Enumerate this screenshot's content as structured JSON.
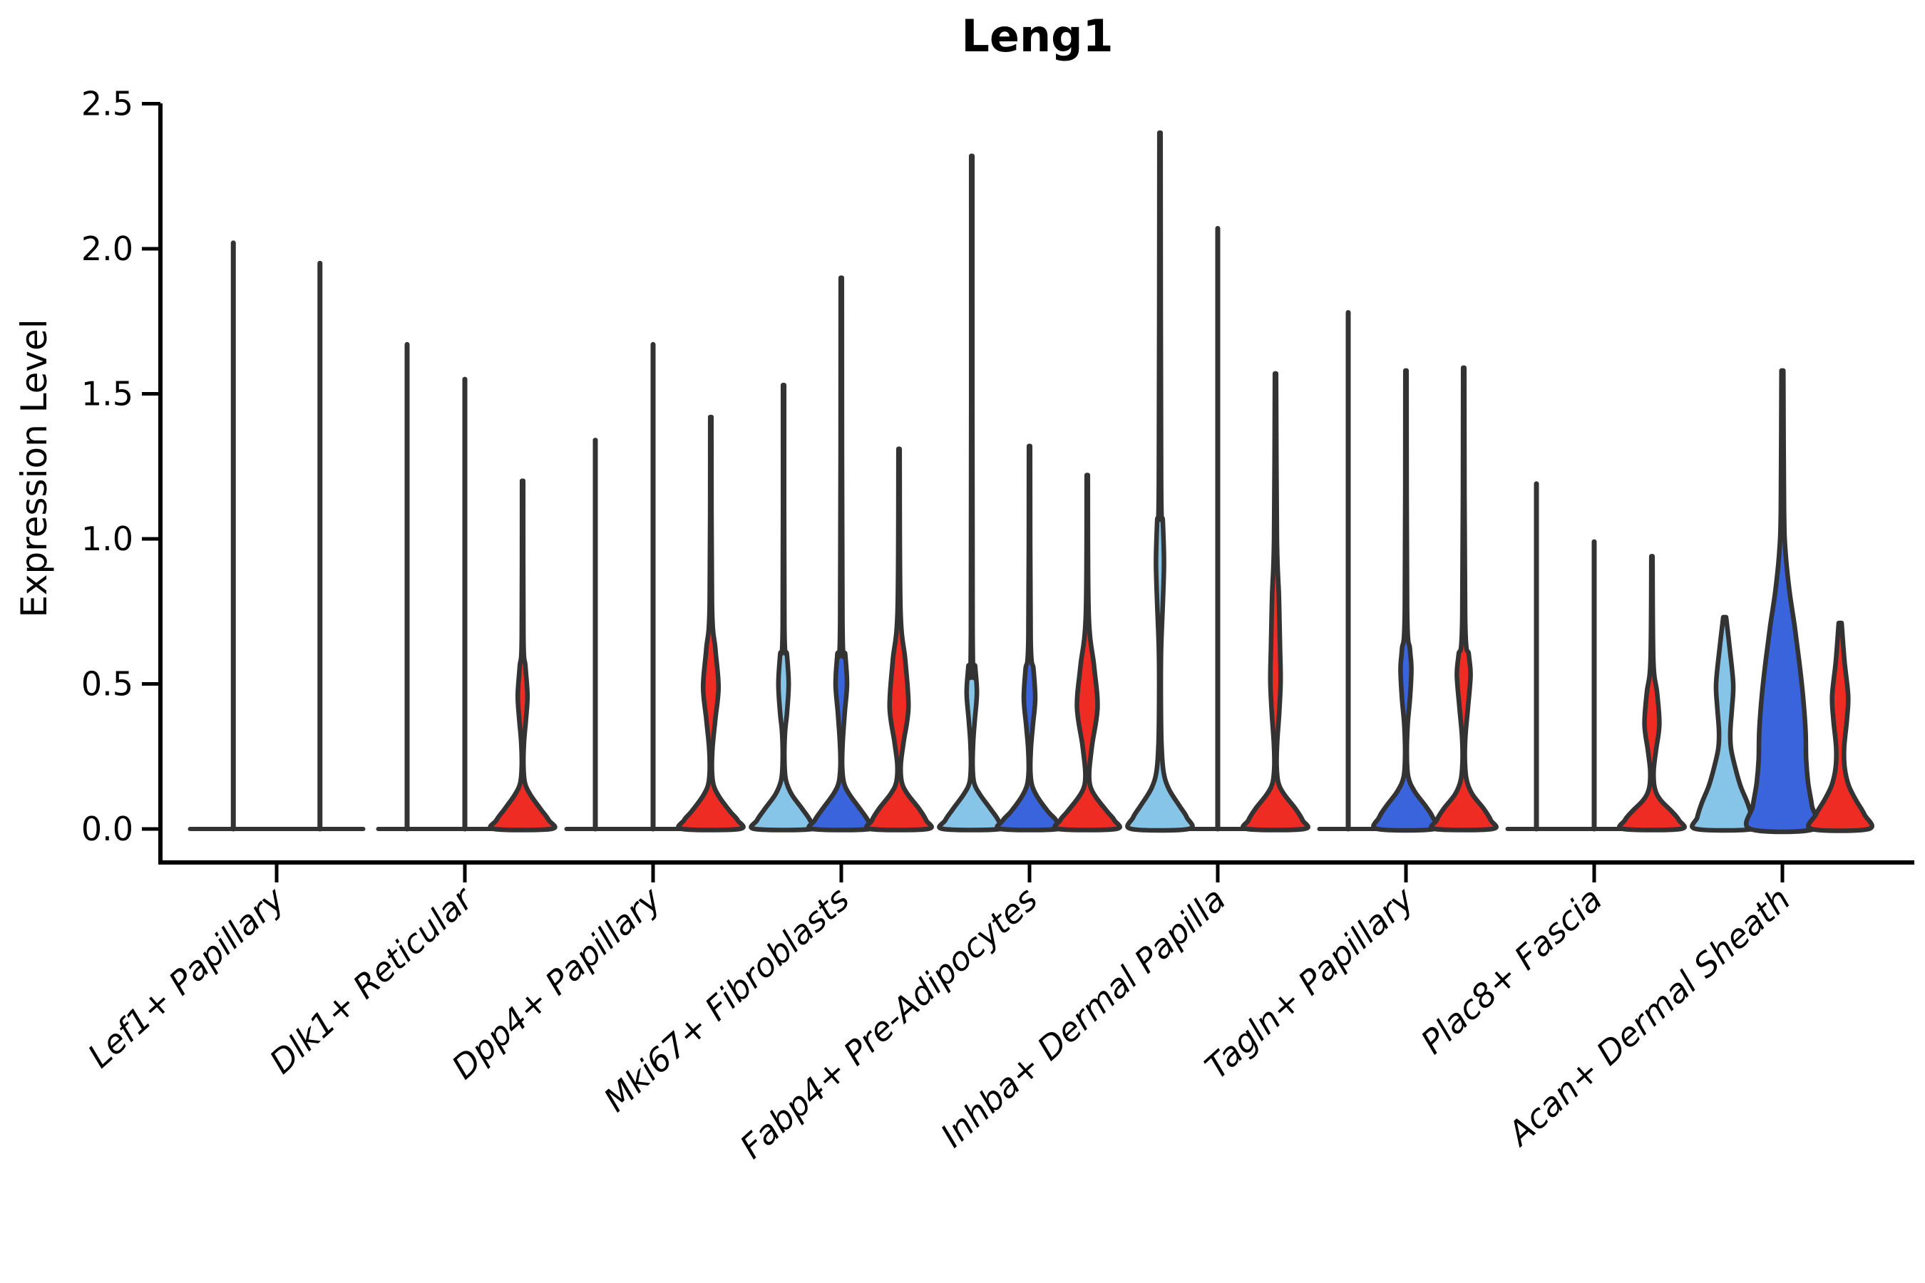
{
  "title": "Leng1",
  "chart_data": {
    "type": "violin",
    "title": "Leng1",
    "xlabel": "",
    "ylabel": "Expression Level",
    "ylim": [
      0.0,
      2.5
    ],
    "y_ticks": [
      0.0,
      0.5,
      1.0,
      1.5,
      2.0,
      2.5
    ],
    "grid": false,
    "legend_position": "none",
    "colors": {
      "lightblue": "#86C5E8",
      "darkblue": "#3A64DB",
      "red": "#EE2C24",
      "outline": "#333333",
      "axis": "#000000"
    },
    "categories": [
      "Lef1+ Papillary",
      "Dlk1+ Reticular",
      "Dpp4+ Papillary",
      "Mki67+ Fibroblasts",
      "Fabp4+ Pre-Adipocytes",
      "Inhba+ Dermal Papilla",
      "Tagln+ Papillary",
      "Plac8+ Fascia",
      "Acan+ Dermal Sheath"
    ],
    "groups": [
      {
        "category": "Lef1+ Papillary",
        "violins": [
          {
            "color": "lightblue",
            "flat": true,
            "max": 2.02
          },
          {
            "color": "darkblue",
            "flat": true,
            "max": 1.95
          }
        ]
      },
      {
        "category": "Dlk1+ Reticular",
        "violins": [
          {
            "color": "lightblue",
            "flat": true,
            "max": 1.67
          },
          {
            "color": "darkblue",
            "flat": true,
            "max": 1.55
          },
          {
            "color": "red",
            "flat": false,
            "max": 1.2,
            "profile": [
              [
                1.2,
                0.02
              ],
              [
                0.66,
                0.03
              ],
              [
                0.56,
                0.1
              ],
              [
                0.46,
                0.17
              ],
              [
                0.38,
                0.12
              ],
              [
                0.3,
                0.05
              ],
              [
                0.22,
                0.03
              ],
              [
                0.16,
                0.08
              ],
              [
                0.12,
                0.26
              ],
              [
                0.07,
                0.62
              ],
              [
                0.03,
                0.92
              ],
              [
                0,
                1
              ]
            ]
          }
        ]
      },
      {
        "category": "Dpp4+ Papillary",
        "violins": [
          {
            "color": "lightblue",
            "flat": true,
            "max": 1.34
          },
          {
            "color": "darkblue",
            "flat": true,
            "max": 1.67
          },
          {
            "color": "red",
            "flat": false,
            "max": 1.42,
            "profile": [
              [
                1.42,
                0.02
              ],
              [
                0.78,
                0.04
              ],
              [
                0.62,
                0.16
              ],
              [
                0.49,
                0.27
              ],
              [
                0.38,
                0.16
              ],
              [
                0.28,
                0.06
              ],
              [
                0.2,
                0.04
              ],
              [
                0.15,
                0.1
              ],
              [
                0.11,
                0.3
              ],
              [
                0.06,
                0.68
              ],
              [
                0.03,
                0.94
              ],
              [
                0,
                1
              ]
            ]
          }
        ]
      },
      {
        "category": "Mki67+ Fibroblasts",
        "violins": [
          {
            "color": "lightblue",
            "flat": false,
            "max": 1.53,
            "profile": [
              [
                1.53,
                0.02
              ],
              [
                0.7,
                0.03
              ],
              [
                0.6,
                0.12
              ],
              [
                0.5,
                0.18
              ],
              [
                0.4,
                0.12
              ],
              [
                0.33,
                0.05
              ],
              [
                0.24,
                0.03
              ],
              [
                0.17,
                0.08
              ],
              [
                0.12,
                0.28
              ],
              [
                0.07,
                0.65
              ],
              [
                0.03,
                0.93
              ],
              [
                0,
                1
              ]
            ]
          },
          {
            "color": "darkblue",
            "flat": false,
            "max": 1.9,
            "profile": [
              [
                1.9,
                0.02
              ],
              [
                0.72,
                0.04
              ],
              [
                0.6,
                0.14
              ],
              [
                0.5,
                0.2
              ],
              [
                0.4,
                0.12
              ],
              [
                0.3,
                0.05
              ],
              [
                0.22,
                0.03
              ],
              [
                0.16,
                0.09
              ],
              [
                0.12,
                0.28
              ],
              [
                0.07,
                0.65
              ],
              [
                0.03,
                0.93
              ],
              [
                0,
                1
              ]
            ]
          },
          {
            "color": "red",
            "flat": false,
            "max": 1.31,
            "profile": [
              [
                1.31,
                0.02
              ],
              [
                0.76,
                0.05
              ],
              [
                0.58,
                0.22
              ],
              [
                0.42,
                0.33
              ],
              [
                0.3,
                0.16
              ],
              [
                0.22,
                0.06
              ],
              [
                0.16,
                0.1
              ],
              [
                0.12,
                0.3
              ],
              [
                0.07,
                0.7
              ],
              [
                0.03,
                0.95
              ],
              [
                0,
                1
              ]
            ]
          }
        ]
      },
      {
        "category": "Fabp4+ Pre-Adipocytes",
        "violins": [
          {
            "color": "lightblue",
            "flat": false,
            "max": 2.32,
            "profile": [
              [
                2.32,
                0.02
              ],
              [
                0.68,
                0.03
              ],
              [
                0.56,
                0.12
              ],
              [
                0.47,
                0.18
              ],
              [
                0.38,
                0.11
              ],
              [
                0.3,
                0.05
              ],
              [
                0.22,
                0.03
              ],
              [
                0.16,
                0.08
              ],
              [
                0.12,
                0.28
              ],
              [
                0.07,
                0.65
              ],
              [
                0.03,
                0.93
              ],
              [
                0,
                1
              ]
            ]
          },
          {
            "color": "darkblue",
            "flat": false,
            "max": 1.32,
            "profile": [
              [
                1.32,
                0.02
              ],
              [
                0.66,
                0.04
              ],
              [
                0.55,
                0.14
              ],
              [
                0.45,
                0.2
              ],
              [
                0.36,
                0.12
              ],
              [
                0.28,
                0.05
              ],
              [
                0.2,
                0.03
              ],
              [
                0.15,
                0.09
              ],
              [
                0.11,
                0.28
              ],
              [
                0.06,
                0.65
              ],
              [
                0.03,
                0.93
              ],
              [
                0,
                1
              ]
            ]
          },
          {
            "color": "red",
            "flat": false,
            "max": 1.22,
            "profile": [
              [
                1.22,
                0.02
              ],
              [
                0.74,
                0.05
              ],
              [
                0.56,
                0.24
              ],
              [
                0.42,
                0.36
              ],
              [
                0.29,
                0.17
              ],
              [
                0.2,
                0.07
              ],
              [
                0.15,
                0.1
              ],
              [
                0.11,
                0.3
              ],
              [
                0.06,
                0.7
              ],
              [
                0.03,
                0.95
              ],
              [
                0,
                1
              ]
            ]
          }
        ]
      },
      {
        "category": "Inhba+ Dermal Papilla",
        "violins": [
          {
            "color": "lightblue",
            "flat": false,
            "max": 2.4,
            "profile": [
              [
                2.4,
                0.02
              ],
              [
                1.2,
                0.04
              ],
              [
                1.06,
                0.1
              ],
              [
                0.92,
                0.14
              ],
              [
                0.78,
                0.1
              ],
              [
                0.62,
                0.04
              ],
              [
                0.45,
                0.03
              ],
              [
                0.3,
                0.05
              ],
              [
                0.2,
                0.12
              ],
              [
                0.14,
                0.3
              ],
              [
                0.08,
                0.68
              ],
              [
                0.04,
                0.94
              ],
              [
                0,
                1
              ]
            ]
          },
          {
            "color": "darkblue",
            "flat": true,
            "max": 2.07
          },
          {
            "color": "red",
            "flat": false,
            "max": 1.57,
            "profile": [
              [
                1.57,
                0.02
              ],
              [
                1.0,
                0.05
              ],
              [
                0.8,
                0.12
              ],
              [
                0.62,
                0.16
              ],
              [
                0.51,
                0.18
              ],
              [
                0.4,
                0.13
              ],
              [
                0.3,
                0.06
              ],
              [
                0.22,
                0.04
              ],
              [
                0.16,
                0.1
              ],
              [
                0.12,
                0.3
              ],
              [
                0.07,
                0.7
              ],
              [
                0.03,
                0.95
              ],
              [
                0,
                1
              ]
            ]
          }
        ]
      },
      {
        "category": "Tagln+ Papillary",
        "violins": [
          {
            "color": "lightblue",
            "flat": true,
            "max": 1.78
          },
          {
            "color": "darkblue",
            "flat": false,
            "max": 1.58,
            "profile": [
              [
                1.58,
                0.02
              ],
              [
                0.76,
                0.04
              ],
              [
                0.62,
                0.14
              ],
              [
                0.55,
                0.19
              ],
              [
                0.45,
                0.14
              ],
              [
                0.36,
                0.06
              ],
              [
                0.26,
                0.03
              ],
              [
                0.18,
                0.08
              ],
              [
                0.13,
                0.3
              ],
              [
                0.08,
                0.68
              ],
              [
                0.04,
                0.94
              ],
              [
                0,
                1
              ]
            ]
          },
          {
            "color": "red",
            "flat": false,
            "max": 1.59,
            "profile": [
              [
                1.59,
                0.02
              ],
              [
                0.73,
                0.05
              ],
              [
                0.6,
                0.18
              ],
              [
                0.53,
                0.24
              ],
              [
                0.42,
                0.15
              ],
              [
                0.32,
                0.06
              ],
              [
                0.24,
                0.04
              ],
              [
                0.17,
                0.1
              ],
              [
                0.12,
                0.3
              ],
              [
                0.07,
                0.7
              ],
              [
                0.03,
                0.95
              ],
              [
                0,
                1
              ]
            ]
          }
        ]
      },
      {
        "category": "Plac8+ Fascia",
        "violins": [
          {
            "color": "lightblue",
            "flat": true,
            "max": 1.19
          },
          {
            "color": "darkblue",
            "flat": true,
            "max": 0.99
          },
          {
            "color": "red",
            "flat": false,
            "max": 0.94,
            "profile": [
              [
                0.94,
                0.02
              ],
              [
                0.58,
                0.05
              ],
              [
                0.47,
                0.18
              ],
              [
                0.36,
                0.26
              ],
              [
                0.27,
                0.14
              ],
              [
                0.2,
                0.06
              ],
              [
                0.14,
                0.1
              ],
              [
                0.1,
                0.3
              ],
              [
                0.06,
                0.7
              ],
              [
                0.03,
                0.95
              ],
              [
                0,
                1
              ]
            ]
          }
        ]
      },
      {
        "category": "Acan+ Dermal Sheath",
        "violins": [
          {
            "color": "lightblue",
            "flat": false,
            "max": 0.73,
            "profile": [
              [
                0.73,
                0.05
              ],
              [
                0.62,
                0.18
              ],
              [
                0.5,
                0.3
              ],
              [
                0.42,
                0.26
              ],
              [
                0.34,
                0.2
              ],
              [
                0.28,
                0.22
              ],
              [
                0.22,
                0.35
              ],
              [
                0.15,
                0.55
              ],
              [
                0.09,
                0.8
              ],
              [
                0.04,
                0.96
              ],
              [
                0,
                1
              ]
            ]
          },
          {
            "color": "darkblue",
            "flat": false,
            "max": 1.58,
            "halfwidth": 45,
            "profile": [
              [
                1.58,
                0.03
              ],
              [
                1.1,
                0.05
              ],
              [
                0.95,
                0.1
              ],
              [
                0.82,
                0.22
              ],
              [
                0.7,
                0.38
              ],
              [
                0.58,
                0.52
              ],
              [
                0.46,
                0.64
              ],
              [
                0.34,
                0.72
              ],
              [
                0.24,
                0.74
              ],
              [
                0.16,
                0.8
              ],
              [
                0.08,
                0.92
              ],
              [
                0,
                1
              ]
            ]
          },
          {
            "color": "red",
            "flat": false,
            "max": 0.71,
            "profile": [
              [
                0.71,
                0.05
              ],
              [
                0.58,
                0.15
              ],
              [
                0.46,
                0.28
              ],
              [
                0.38,
                0.24
              ],
              [
                0.28,
                0.14
              ],
              [
                0.21,
                0.16
              ],
              [
                0.15,
                0.3
              ],
              [
                0.1,
                0.55
              ],
              [
                0.05,
                0.85
              ],
              [
                0,
                1
              ]
            ]
          }
        ]
      }
    ]
  }
}
